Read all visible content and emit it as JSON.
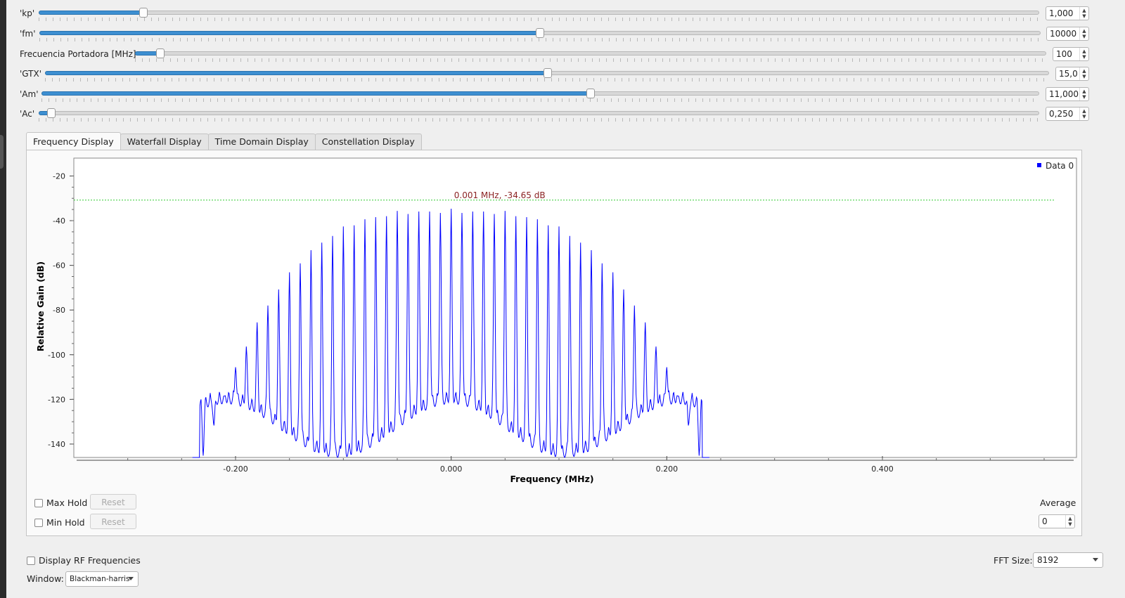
{
  "sliders": [
    {
      "label": "'kp'",
      "value": "1,000",
      "fraction": 0.104
    },
    {
      "label": "'fm'",
      "value": "10000",
      "fraction": 0.499
    },
    {
      "label": "Frecuencia Portadora [MHz]",
      "value": "100",
      "fraction": 0.027
    },
    {
      "label": "'GTX'",
      "value": "15,0",
      "fraction": 0.5
    },
    {
      "label": "'Am'",
      "value": "11,000",
      "fraction": 0.55
    },
    {
      "label": "'Ac'",
      "value": "0,250",
      "fraction": 0.01
    }
  ],
  "tabs": [
    "Frequency Display",
    "Waterfall Display",
    "Time Domain Display",
    "Constellation Display"
  ],
  "active_tab": 0,
  "chart_data": {
    "type": "line",
    "xlabel": "Frequency (MHz)",
    "ylabel": "Relative Gain (dB)",
    "xlim": [
      -0.35,
      0.58
    ],
    "ylim": [
      -146,
      -12
    ],
    "x_ticks": [
      -0.2,
      0.0,
      0.2,
      0.4
    ],
    "x_tick_labels": [
      "-0.200",
      "0.000",
      "0.200",
      "0.400"
    ],
    "y_ticks": [
      -20,
      -40,
      -60,
      -80,
      -100,
      -120,
      -140
    ],
    "y_tick_labels": [
      "-20",
      "-40",
      "-60",
      "-80",
      "-100",
      "-120",
      "-140"
    ],
    "series": [
      {
        "name": "Data 0",
        "color": "#0000ff",
        "spacing_mhz": 0.01,
        "peak_db": -34.65,
        "span_mhz": [
          -0.23,
          0.23
        ],
        "floor_db": -146
      }
    ],
    "marker_line_db": -30.8,
    "marker_label": "0.001 MHz, -34.65 dB",
    "legend": "top-right",
    "grid": false
  },
  "controls": {
    "max_hold": "Max Hold",
    "min_hold": "Min Hold",
    "reset": "Reset",
    "average_label": "Average",
    "average_value": "0",
    "display_rf": "Display RF Frequencies",
    "fft_label": "FFT Size:",
    "fft_value": "8192",
    "window_label": "Window:",
    "window_value": "Blackman-harris"
  }
}
